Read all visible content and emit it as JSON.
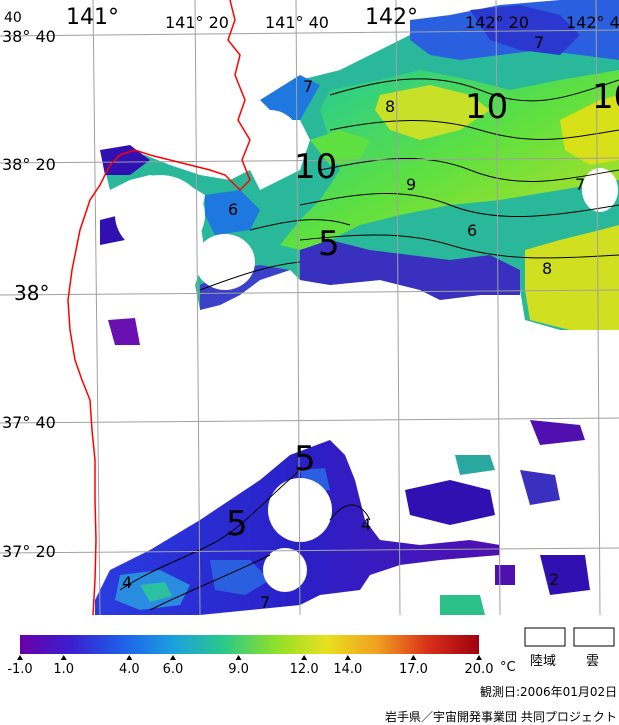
{
  "map": {
    "latitude_labels": [
      {
        "deg": "38°",
        "min": "40",
        "text": "38° 40"
      },
      {
        "deg": "38°",
        "min": "20",
        "text": "38° 20"
      },
      {
        "deg": "38°",
        "min": "",
        "text": "38°"
      },
      {
        "deg": "37°",
        "min": "40",
        "text": "37° 40"
      },
      {
        "deg": "37°",
        "min": "20",
        "text": "37° 20"
      }
    ],
    "longitude_labels": [
      {
        "text": "141°"
      },
      {
        "text": "141° 20"
      },
      {
        "text": "141° 40"
      },
      {
        "text": "142°"
      },
      {
        "text": "142° 20"
      },
      {
        "text": "142° 4"
      }
    ],
    "corner_label": "40",
    "contour_labels": [
      {
        "text": "7"
      },
      {
        "text": "8"
      },
      {
        "text": "10"
      },
      {
        "text": "10"
      },
      {
        "text": "10"
      },
      {
        "text": "7"
      },
      {
        "text": "6"
      },
      {
        "text": "9"
      },
      {
        "text": "7"
      },
      {
        "text": "5"
      },
      {
        "text": "6"
      },
      {
        "text": "8"
      },
      {
        "text": "5"
      },
      {
        "text": "5"
      },
      {
        "text": "4"
      },
      {
        "text": "4"
      },
      {
        "text": "7"
      },
      {
        "text": "2"
      }
    ],
    "colors": {
      "coast": "#ff0000",
      "grid": "#a0a0a0",
      "contour": "#000000"
    }
  },
  "legend": {
    "unit": "°C",
    "ticks": [
      "-1.0",
      "1.0",
      "4.0",
      "6.0",
      "9.0",
      "12.0",
      "14.0",
      "17.0",
      "20.0"
    ],
    "tick_values": [
      -1,
      1,
      4,
      6,
      9,
      12,
      14,
      17,
      20
    ],
    "range": [
      -1,
      20
    ],
    "gradient_colors": [
      "#6a00a8",
      "#3a1fd0",
      "#1f5fe8",
      "#1aa0e0",
      "#2ac88a",
      "#8ee02a",
      "#e8e020",
      "#f0a020",
      "#d83018",
      "#a00010"
    ],
    "land_label": "陸域",
    "cloud_label": "雲"
  },
  "footer": {
    "observation_date": "観測日:2006年01月02日",
    "credit": "岩手県／宇宙開発事業団 共同プロジェクト"
  }
}
